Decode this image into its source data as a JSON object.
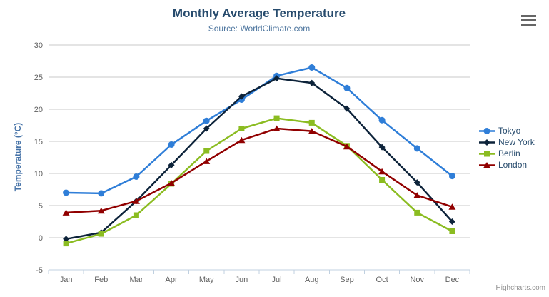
{
  "chart_data": {
    "type": "line",
    "title": "Monthly Average Temperature",
    "subtitle": "Source: WorldClimate.com",
    "xlabel": "",
    "ylabel": "Temperature (°C)",
    "ylim": [
      -5,
      30
    ],
    "ytick_interval": 5,
    "grid": true,
    "legend_position": "right",
    "categories": [
      "Jan",
      "Feb",
      "Mar",
      "Apr",
      "May",
      "Jun",
      "Jul",
      "Aug",
      "Sep",
      "Oct",
      "Nov",
      "Dec"
    ],
    "series": [
      {
        "name": "Tokyo",
        "color": "#2f7ed8",
        "marker": "circle",
        "values": [
          7.0,
          6.9,
          9.5,
          14.5,
          18.2,
          21.5,
          25.2,
          26.5,
          23.3,
          18.3,
          13.9,
          9.6
        ]
      },
      {
        "name": "New York",
        "color": "#0d233a",
        "marker": "diamond",
        "values": [
          -0.2,
          0.8,
          5.7,
          11.3,
          17.0,
          22.0,
          24.8,
          24.1,
          20.1,
          14.1,
          8.6,
          2.5
        ]
      },
      {
        "name": "Berlin",
        "color": "#8bbc21",
        "marker": "square",
        "values": [
          -0.9,
          0.6,
          3.5,
          8.4,
          13.5,
          17.0,
          18.6,
          17.9,
          14.3,
          9.0,
          3.9,
          1.0
        ]
      },
      {
        "name": "London",
        "color": "#910000",
        "marker": "triangle",
        "values": [
          3.9,
          4.2,
          5.7,
          8.5,
          11.9,
          15.2,
          17.0,
          16.6,
          14.2,
          10.3,
          6.6,
          4.8
        ]
      }
    ],
    "colors": {
      "title": "#274b6d",
      "subtitle": "#4d759e",
      "axis_title": "#4572a7",
      "tick_label": "#606060",
      "gridline": "#c9c9c9",
      "axis_line": "#c0d0e0",
      "credits": "#909090"
    }
  },
  "footer": {
    "credits": "Highcharts.com"
  }
}
